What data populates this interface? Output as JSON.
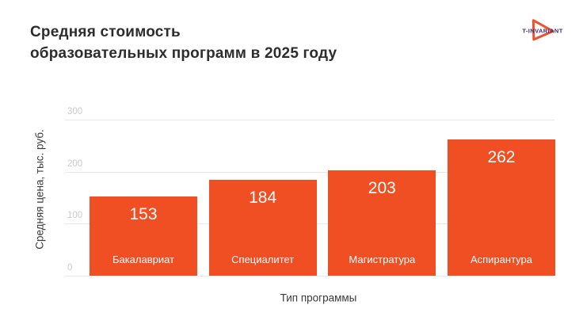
{
  "header": {
    "title_line1": "Средняя стоимость",
    "title_line2": "образовательных программ в 2025 году"
  },
  "logo": {
    "text": "T-INVARIANT",
    "triangle_color": "#F0512A",
    "text_color": "#3A2B7E"
  },
  "chart_data": {
    "type": "bar",
    "title": "Средняя стоимость образовательных программ в 2025 году",
    "categories": [
      "Бакалавриат",
      "Специалитет",
      "Магистратура",
      "Аспирантура"
    ],
    "values": [
      153,
      184,
      203,
      262
    ],
    "xlabel": "Тип программы",
    "ylabel": "Средняя цена, тыс. руб.",
    "ylim": [
      0,
      300
    ],
    "yticks": [
      0,
      100,
      200,
      300
    ],
    "grid": true,
    "legend_position": "none",
    "bar_color": "#F04E23",
    "value_label_color": "#FFFFFF",
    "category_label_color": "#FFFFFF",
    "tick_color": "#C7CBCE",
    "grid_color": "#E7E8EA"
  }
}
